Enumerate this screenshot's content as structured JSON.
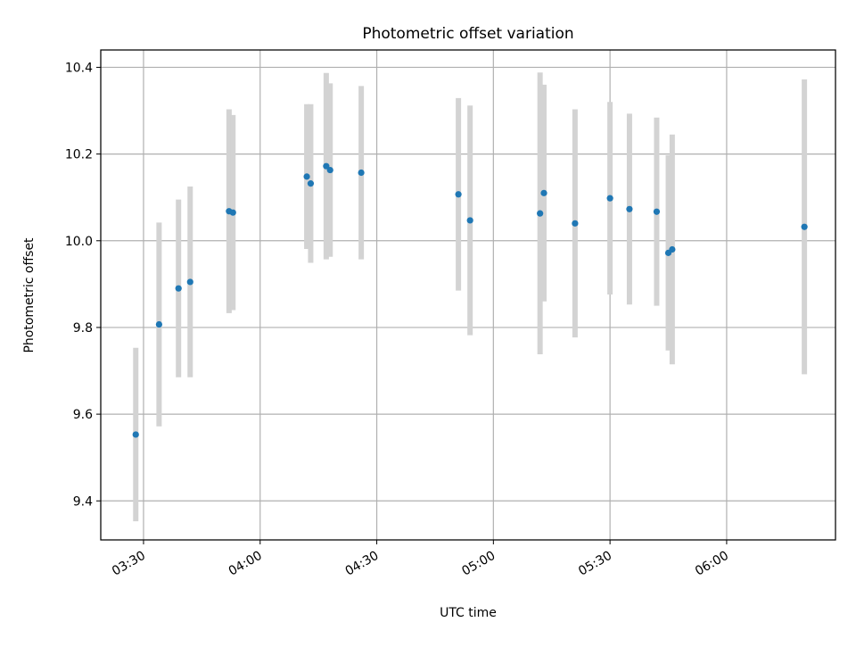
{
  "chart_data": {
    "type": "scatter",
    "title": "Photometric offset variation",
    "xlabel": "UTC time",
    "ylabel": "Photometric offset",
    "x_axis_kind": "time",
    "x_ticks": [
      "03:30",
      "04:00",
      "04:30",
      "05:00",
      "05:30",
      "06:00"
    ],
    "y_ticks": [
      "9.4",
      "9.6",
      "9.8",
      "10.0",
      "10.2",
      "10.4"
    ],
    "xlim": [
      "03:19",
      "06:28"
    ],
    "ylim": [
      9.31,
      10.44
    ],
    "grid": true,
    "legend": "none",
    "colors": {
      "points": "#1f77b4",
      "errorbars": "#d3d3d3",
      "grid": "#b0b0b0",
      "axes": "#000000"
    },
    "series": [
      {
        "points": [
          {
            "x": "03:28",
            "y": 9.553,
            "yerr": 0.2
          },
          {
            "x": "03:34",
            "y": 9.807,
            "yerr": 0.235
          },
          {
            "x": "03:39",
            "y": 9.89,
            "yerr": 0.205
          },
          {
            "x": "03:42",
            "y": 9.905,
            "yerr": 0.22
          },
          {
            "x": "03:52",
            "y": 10.068,
            "yerr": 0.235
          },
          {
            "x": "03:53",
            "y": 10.065,
            "yerr": 0.225
          },
          {
            "x": "04:12",
            "y": 10.148,
            "yerr": 0.167
          },
          {
            "x": "04:13",
            "y": 10.132,
            "yerr": 0.183
          },
          {
            "x": "04:17",
            "y": 10.172,
            "yerr": 0.215
          },
          {
            "x": "04:18",
            "y": 10.163,
            "yerr": 0.2
          },
          {
            "x": "04:26",
            "y": 10.157,
            "yerr": 0.2
          },
          {
            "x": "04:51",
            "y": 10.107,
            "yerr": 0.222
          },
          {
            "x": "04:54",
            "y": 10.047,
            "yerr": 0.265
          },
          {
            "x": "05:12",
            "y": 10.063,
            "yerr": 0.325
          },
          {
            "x": "05:13",
            "y": 10.11,
            "yerr": 0.25
          },
          {
            "x": "05:21",
            "y": 10.04,
            "yerr": 0.263
          },
          {
            "x": "05:30",
            "y": 10.098,
            "yerr": 0.222
          },
          {
            "x": "05:35",
            "y": 10.073,
            "yerr": 0.22
          },
          {
            "x": "05:42",
            "y": 10.067,
            "yerr": 0.217
          },
          {
            "x": "05:45",
            "y": 9.972,
            "yerr": 0.225
          },
          {
            "x": "05:46",
            "y": 9.98,
            "yerr": 0.265
          },
          {
            "x": "06:20",
            "y": 10.032,
            "yerr": 0.34
          }
        ]
      }
    ]
  }
}
